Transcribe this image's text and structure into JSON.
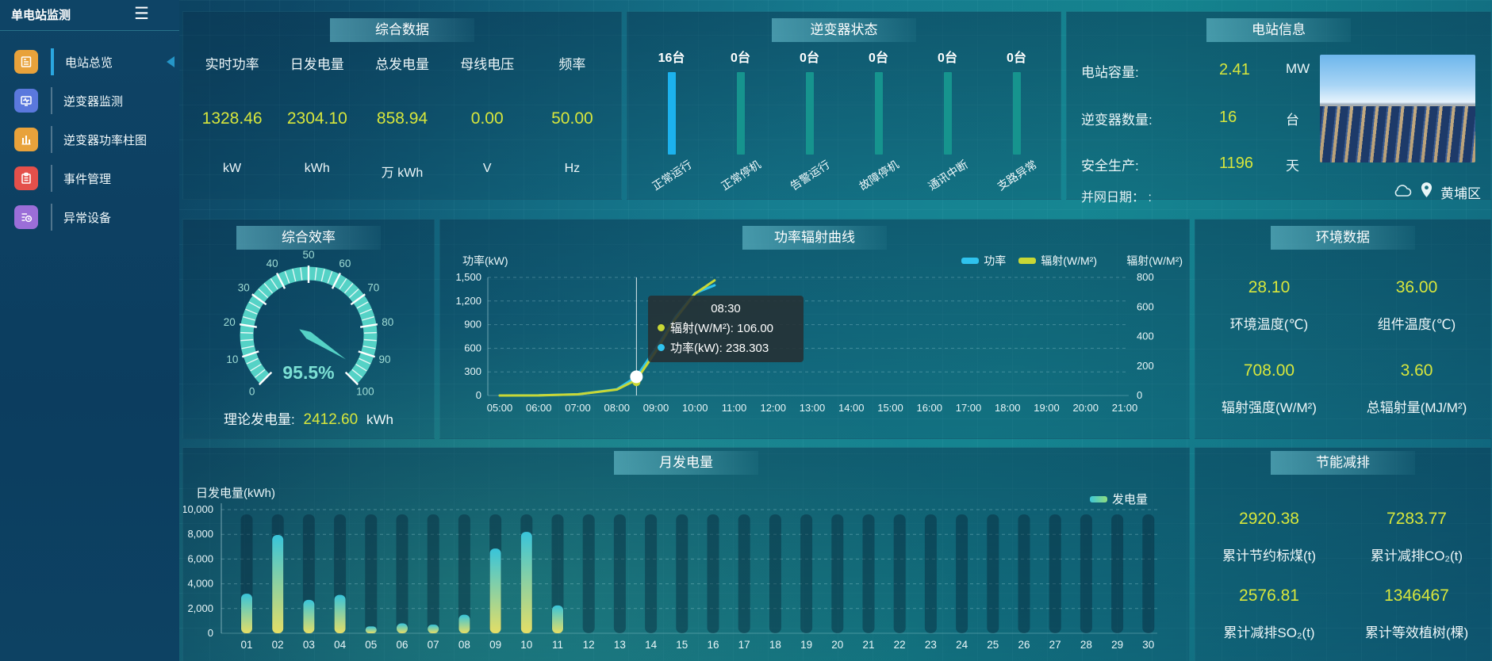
{
  "app": {
    "title": "单电站监测"
  },
  "sidebar": {
    "items": [
      {
        "label": "电站总览"
      },
      {
        "label": "逆变器监测"
      },
      {
        "label": "逆变器功率柱图"
      },
      {
        "label": "事件管理"
      },
      {
        "label": "异常设备"
      }
    ]
  },
  "summary": {
    "title": "综合数据",
    "metrics": [
      {
        "label": "实时功率",
        "value": "1328.46",
        "unit": "kW"
      },
      {
        "label": "日发电量",
        "value": "2304.10",
        "unit": "kWh"
      },
      {
        "label": "总发电量",
        "value": "858.94",
        "unit": "万 kWh"
      },
      {
        "label": "母线电压",
        "value": "0.00",
        "unit": "V"
      },
      {
        "label": "频率",
        "value": "50.00",
        "unit": "Hz"
      }
    ]
  },
  "inverter_status": {
    "title": "逆变器状态",
    "statuses": [
      {
        "count_label": "16台",
        "label": "正常运行"
      },
      {
        "count_label": "0台",
        "label": "正常停机"
      },
      {
        "count_label": "0台",
        "label": "告警运行"
      },
      {
        "count_label": "0台",
        "label": "故障停机"
      },
      {
        "count_label": "0台",
        "label": "通讯中断"
      },
      {
        "count_label": "0台",
        "label": "支路异常"
      }
    ]
  },
  "station_info": {
    "title": "电站信息",
    "rows": [
      {
        "label": "电站容量:",
        "value": "2.41",
        "unit": "MW"
      },
      {
        "label": "逆变器数量:",
        "value": "16",
        "unit": "台"
      },
      {
        "label": "安全生产:",
        "value": "1196",
        "unit": "天"
      }
    ],
    "grid_date_label": "并网日期： :",
    "location": "黄埔区"
  },
  "efficiency": {
    "title": "综合效率",
    "value_label": "95.5%",
    "theory_label": "理论发电量:",
    "theory_value": "2412.60",
    "theory_unit": "kWh"
  },
  "power_curve": {
    "title": "功率辐射曲线",
    "y_left_title": "功率(kW)",
    "y_right_title": "辐射(W/M²)",
    "legend": [
      {
        "label": "功率",
        "color": "#2fc3ee"
      },
      {
        "label": "辐射(W/M²)",
        "color": "#c8d735"
      }
    ],
    "tooltip": {
      "time": "08:30",
      "rows": [
        {
          "text": "辐射(W/M²): 106.00",
          "color": "#c8d735"
        },
        {
          "text": "功率(kW): 238.303",
          "color": "#2fc3ee"
        }
      ]
    }
  },
  "environment": {
    "title": "环境数据",
    "metrics": [
      {
        "value": "28.10",
        "label": "环境温度(℃)"
      },
      {
        "value": "36.00",
        "label": "组件温度(℃)"
      },
      {
        "value": "708.00",
        "label": "辐射强度(W/M²)"
      },
      {
        "value": "3.60",
        "label": "总辐射量(MJ/M²)"
      }
    ]
  },
  "monthly": {
    "title": "月发电量",
    "y_title": "日发电量(kWh)",
    "legend": "发电量"
  },
  "saving": {
    "title": "节能减排",
    "metrics": [
      {
        "value": "2920.38",
        "label": "累计节约标煤(t)"
      },
      {
        "value": "7283.77",
        "label": "累计减排CO₂(t)"
      },
      {
        "value": "2576.81",
        "label": "累计减排SO₂(t)"
      },
      {
        "value": "1346467",
        "label": "累计等效植树(棵)"
      }
    ]
  },
  "chart_data": [
    {
      "type": "bar",
      "title": "逆变器状态",
      "categories": [
        "正常运行",
        "正常停机",
        "告警运行",
        "故障停机",
        "通讯中断",
        "支路异常"
      ],
      "values": [
        16,
        0,
        0,
        0,
        0,
        0
      ],
      "unit": "台",
      "highlight_color": "#1cb2ee",
      "bar_color": "#16948e"
    },
    {
      "type": "gauge",
      "title": "综合效率",
      "value": 95.5,
      "min": 0,
      "max": 100,
      "unit": "%",
      "color": "#55d2c6"
    },
    {
      "type": "line",
      "title": "功率辐射曲线",
      "x_axis_labels": [
        "05:00",
        "06:00",
        "07:00",
        "08:00",
        "09:00",
        "10:00",
        "11:00",
        "12:00",
        "13:00",
        "14:00",
        "15:00",
        "16:00",
        "17:00",
        "18:00",
        "19:00",
        "20:00",
        "21:00"
      ],
      "x_hours": [
        5,
        6,
        7,
        8,
        8.5,
        9,
        9.5,
        10,
        10.5
      ],
      "series": [
        {
          "name": "功率",
          "unit": "kW",
          "axis": "left",
          "color": "#2fc3ee",
          "values": [
            0,
            2,
            15,
            80,
            238.303,
            600,
            1000,
            1300,
            1400
          ]
        },
        {
          "name": "辐射",
          "unit": "W/M²",
          "axis": "right",
          "color": "#c8d735",
          "values": [
            0,
            1,
            8,
            40,
            106,
            300,
            520,
            690,
            780
          ]
        }
      ],
      "y_left": {
        "title": "功率(kW)",
        "min": 0,
        "max": 1500,
        "step": 300
      },
      "y_right": {
        "title": "辐射(W/M²)",
        "min": 0,
        "max": 800,
        "step": 200
      },
      "tooltip_x": 8.5,
      "tooltip": {
        "time": "08:30",
        "辐射(W/M²)": 106.0,
        "功率(kW)": 238.303
      },
      "legend_position": "top-right",
      "grid": true
    },
    {
      "type": "bar",
      "title": "月发电量",
      "categories": [
        "01",
        "02",
        "03",
        "04",
        "05",
        "06",
        "07",
        "08",
        "09",
        "10",
        "11",
        "12",
        "13",
        "14",
        "15",
        "16",
        "17",
        "18",
        "19",
        "20",
        "21",
        "22",
        "23",
        "24",
        "25",
        "26",
        "27",
        "28",
        "29",
        "30"
      ],
      "values": [
        3200,
        7950,
        2700,
        3100,
        550,
        800,
        700,
        1500,
        6850,
        8200,
        2250,
        0,
        0,
        0,
        0,
        0,
        0,
        0,
        0,
        0,
        0,
        0,
        0,
        0,
        0,
        0,
        0,
        0,
        0,
        0
      ],
      "ylabel": "日发电量(kWh)",
      "ylim": [
        0,
        10000
      ],
      "ystep": 2000,
      "legend": "发电量",
      "grid": true
    }
  ]
}
